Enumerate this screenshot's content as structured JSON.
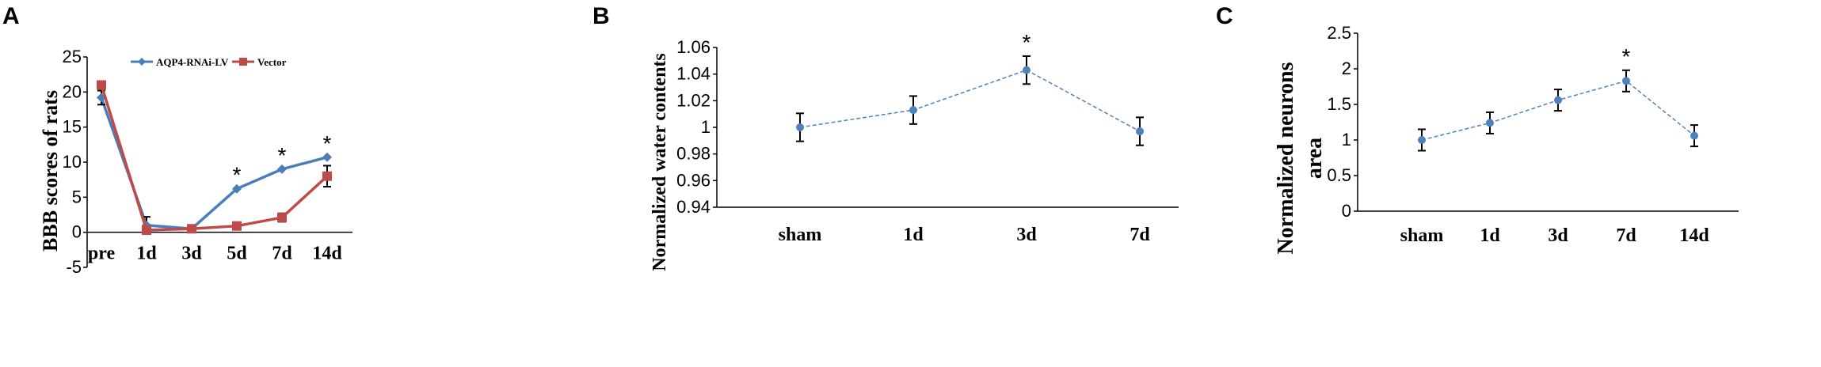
{
  "chart_data": [
    {
      "panel": "A",
      "type": "line",
      "ylabel": "BBB scores of rats",
      "xlabel": "",
      "categories": [
        "pre",
        "1d",
        "3d",
        "5d",
        "7d",
        "14d"
      ],
      "ylim": [
        -5,
        25
      ],
      "yticks": [
        -5,
        0,
        5,
        10,
        15,
        20,
        25
      ],
      "legend_position": "top",
      "series": [
        {
          "name": "AQP4-RNAi-LV",
          "color": "#4a7ebb",
          "marker": "diamond",
          "values": [
            19.2,
            1.0,
            0.5,
            6.2,
            9.0,
            10.7
          ],
          "errors": [
            1.0,
            1.2,
            0.0,
            0.0,
            0.0,
            0.0
          ]
        },
        {
          "name": "Vector",
          "color": "#be4b48",
          "marker": "square",
          "values": [
            21.0,
            0.3,
            0.5,
            0.9,
            2.1,
            8.0
          ],
          "errors": [
            0.0,
            0.0,
            0.0,
            0.0,
            0.6,
            1.5
          ]
        }
      ],
      "significance": [
        "",
        "",
        "",
        "*",
        "*",
        "*"
      ]
    },
    {
      "panel": "B",
      "type": "line",
      "ylabel": "Normalized water contents",
      "xlabel": "",
      "categories": [
        "sham",
        "1d",
        "3d",
        "7d"
      ],
      "ylim": [
        0.94,
        1.06
      ],
      "yticks": [
        "0.94",
        "0.96",
        "0.98",
        "1",
        "1.02",
        "1.04",
        "1.06"
      ],
      "series": [
        {
          "color": "#4f81bd",
          "values": [
            1.0,
            1.013,
            1.043,
            0.997
          ],
          "errors": [
            0.0105,
            0.0105,
            0.0105,
            0.0105
          ]
        }
      ],
      "significance": [
        "",
        "",
        "*",
        ""
      ]
    },
    {
      "panel": "C",
      "type": "line",
      "ylabel": "Normalized neurons area",
      "xlabel": "",
      "categories": [
        "sham",
        "1d",
        "3d",
        "7d",
        "14d"
      ],
      "ylim": [
        0,
        2.5
      ],
      "yticks": [
        "0",
        "0.5",
        "1",
        "1.5",
        "2",
        "2.5"
      ],
      "series": [
        {
          "color": "#4f81bd",
          "values": [
            1.0,
            1.24,
            1.56,
            1.83,
            1.06
          ],
          "errors": [
            0.15,
            0.15,
            0.15,
            0.15,
            0.15
          ]
        }
      ],
      "significance": [
        "",
        "",
        "",
        "*",
        ""
      ]
    }
  ],
  "panel_letters": [
    "A",
    "B",
    "C"
  ],
  "ylabel_lines": {
    "A": [
      "BBB scores of rats"
    ],
    "B": [
      "Normalized water contents"
    ],
    "C": [
      "Normalized neurons",
      "area"
    ]
  }
}
